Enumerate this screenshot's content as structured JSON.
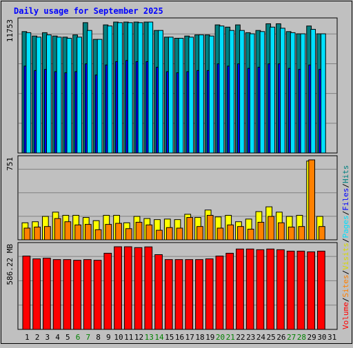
{
  "chart_data": {
    "type": "bar",
    "title": "Daily usage for September 2025",
    "categories": [
      "1",
      "2",
      "3",
      "4",
      "5",
      "6",
      "7",
      "8",
      "9",
      "10",
      "11",
      "12",
      "13",
      "14",
      "15",
      "16",
      "17",
      "18",
      "19",
      "20",
      "21",
      "22",
      "23",
      "24",
      "25",
      "26",
      "27",
      "28",
      "29",
      "30",
      "31"
    ],
    "weekend_days": [
      "6",
      "7",
      "13",
      "14",
      "20",
      "21",
      "27",
      "28"
    ],
    "panels": [
      {
        "id": "hits-files-pages",
        "max_label": "11753",
        "ylim": [
          0,
          11753
        ],
        "series": [
          {
            "name": "Hits",
            "color": "#008080",
            "values": [
              10900,
              10500,
              10800,
              10500,
              10400,
              10600,
              11700,
              10200,
              11500,
              11753,
              11753,
              11753,
              11753,
              11000,
              10400,
              10300,
              10500,
              10600,
              10600,
              11500,
              11300,
              11500,
              10800,
              11000,
              11600,
              11600,
              10900,
              10700,
              11400,
              10700,
              null
            ]
          },
          {
            "name": "Files",
            "color": "#0000ff",
            "values": [
              7800,
              7400,
              7500,
              7300,
              7200,
              7300,
              8000,
              7000,
              7900,
              8200,
              8300,
              8200,
              8200,
              7700,
              7300,
              7200,
              7300,
              7400,
              7400,
              8000,
              7800,
              8000,
              7600,
              7700,
              8000,
              8000,
              7600,
              7500,
              7900,
              7500,
              null
            ]
          },
          {
            "name": "Pages",
            "color": "#00e0ff",
            "values": [
              10800,
              10400,
              10600,
              10400,
              10300,
              10400,
              11000,
              10200,
              11400,
              11700,
              11700,
              11700,
              11753,
              11000,
              10400,
              10300,
              10400,
              10600,
              10500,
              11400,
              11000,
              11000,
              10700,
              10900,
              11300,
              11200,
              10800,
              10700,
              11100,
              10700,
              null
            ]
          }
        ]
      },
      {
        "id": "visits-sites",
        "max_label": "751",
        "ylim": [
          0,
          751
        ],
        "series": [
          {
            "name": "Visits",
            "color": "#ffff00",
            "values": [
              160,
              170,
              220,
              260,
              230,
              230,
              210,
              180,
              230,
              230,
              160,
              220,
              200,
              190,
              195,
              190,
              240,
              210,
              280,
              215,
              230,
              170,
              195,
              265,
              310,
              260,
              220,
              230,
              740,
              220,
              null
            ]
          },
          {
            "name": "Sites",
            "color": "#ff8000",
            "values": [
              110,
              120,
              125,
              200,
              170,
              140,
              145,
              95,
              145,
              155,
              105,
              165,
              140,
              90,
              115,
              110,
              210,
              125,
              230,
              110,
              140,
              125,
              100,
              165,
              220,
              160,
              120,
              125,
              751,
              125,
              null
            ]
          }
        ]
      },
      {
        "id": "volume",
        "max_label": "586.22 MB",
        "ylim": [
          0,
          586.22
        ],
        "series": [
          {
            "name": "Volume",
            "color": "#ff0000",
            "values": [
              520,
              500,
              505,
              495,
              495,
              490,
              495,
              490,
              540,
              586,
              586,
              580,
              585,
              530,
              495,
              495,
              495,
              495,
              500,
              520,
              540,
              570,
              570,
              565,
              570,
              565,
              555,
              555,
              550,
              555,
              null
            ]
          }
        ]
      }
    ]
  }
}
